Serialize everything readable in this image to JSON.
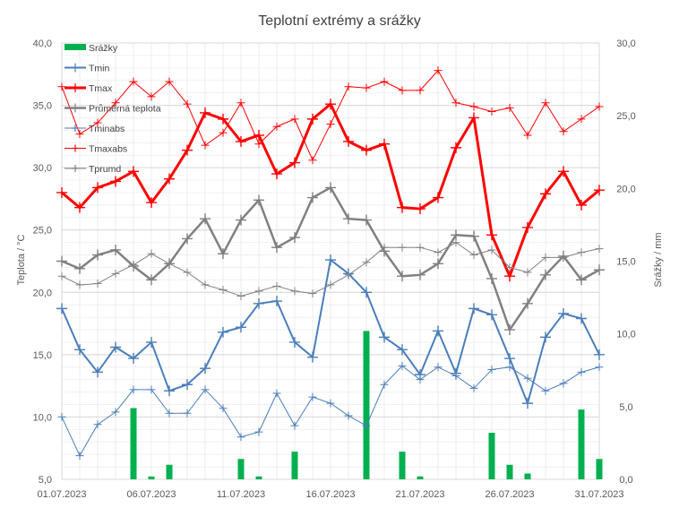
{
  "chart_data": {
    "type": "line",
    "title": "Teplotní extrémy a srážky",
    "ylabel": "Teplota / °C",
    "y2label": "Srážky / mm",
    "ylim": [
      5,
      40
    ],
    "y2lim": [
      0,
      30
    ],
    "y_ticks": [
      "5,0",
      "10,0",
      "15,0",
      "20,0",
      "25,0",
      "30,0",
      "35,0",
      "40,0"
    ],
    "y2_ticks": [
      "0,0",
      "5,0",
      "10,0",
      "15,0",
      "20,0",
      "25,0",
      "30,0"
    ],
    "x_tick_labels": [
      "01.07.2023",
      "06.07.2023",
      "11.07.2023",
      "16.07.2023",
      "21.07.2023",
      "26.07.2023",
      "31.07.2023"
    ],
    "grid": true,
    "legend_position": "top-left",
    "days": 31,
    "series": [
      {
        "name": "Srážky",
        "kind": "bar",
        "axis": "right",
        "color": "#00b050",
        "values": [
          0,
          0,
          0,
          0,
          4.9,
          0.2,
          1.0,
          0,
          0,
          0,
          1.4,
          0.2,
          0,
          1.9,
          0,
          0,
          0,
          10.2,
          0,
          1.9,
          0.2,
          0,
          0,
          0,
          3.2,
          1.0,
          0.4,
          0,
          0,
          4.8,
          1.4
        ]
      },
      {
        "name": "Tmin",
        "kind": "line",
        "axis": "left",
        "color": "#4a7ebb",
        "width": 2,
        "marker": true,
        "values": [
          18.7,
          15.4,
          13.6,
          15.6,
          14.7,
          16.0,
          12.1,
          12.6,
          13.9,
          16.8,
          17.2,
          19.1,
          19.3,
          16.0,
          14.8,
          22.6,
          21.5,
          20.0,
          16.4,
          15.4,
          13.4,
          16.9,
          13.5,
          18.7,
          18.2,
          14.7,
          11.1,
          16.4,
          18.3,
          17.9,
          15.0
        ]
      },
      {
        "name": "Tmax",
        "kind": "line",
        "axis": "left",
        "color": "#ff0000",
        "width": 3,
        "marker": true,
        "values": [
          28.0,
          26.8,
          28.4,
          28.9,
          29.7,
          27.2,
          29.1,
          31.4,
          34.4,
          33.9,
          32.1,
          32.6,
          29.5,
          30.4,
          33.9,
          35.1,
          32.1,
          31.4,
          31.9,
          26.8,
          26.7,
          27.6,
          31.6,
          34.0,
          24.6,
          21.3,
          25.2,
          27.9,
          29.7,
          27.0,
          28.2
        ]
      },
      {
        "name": "Průměrná teplota",
        "kind": "line",
        "axis": "left",
        "color": "#808080",
        "width": 2.5,
        "marker": true,
        "values": [
          22.5,
          21.9,
          23.0,
          23.4,
          22.1,
          21.0,
          22.3,
          24.3,
          25.9,
          23.1,
          25.8,
          27.4,
          23.6,
          24.4,
          27.6,
          28.4,
          25.9,
          25.8,
          23.3,
          21.3,
          21.4,
          22.3,
          24.6,
          24.5,
          21.1,
          17.0,
          19.1,
          21.4,
          22.9,
          21.0,
          21.8
        ]
      },
      {
        "name": "Tminabs",
        "kind": "line",
        "axis": "left",
        "color": "#4a7ebb",
        "width": 1,
        "marker": true,
        "values": [
          10.0,
          6.9,
          9.4,
          10.4,
          12.2,
          12.2,
          10.3,
          10.3,
          12.2,
          10.7,
          8.4,
          8.8,
          11.9,
          9.3,
          11.6,
          11.1,
          10.1,
          9.3,
          12.6,
          14.1,
          13.0,
          14.0,
          13.3,
          12.3,
          13.8,
          14.0,
          13.1,
          12.1,
          12.7,
          13.6,
          14.0
        ]
      },
      {
        "name": "Tmaxabs",
        "kind": "line",
        "axis": "left",
        "color": "#ff0000",
        "width": 1,
        "marker": true,
        "values": [
          36.5,
          32.7,
          33.6,
          35.2,
          36.9,
          35.7,
          36.9,
          35.1,
          31.8,
          32.8,
          35.2,
          31.9,
          33.3,
          33.9,
          30.6,
          33.5,
          36.5,
          36.4,
          36.9,
          36.2,
          36.2,
          37.8,
          35.2,
          34.9,
          34.5,
          34.8,
          32.6,
          35.2,
          32.9,
          33.9,
          34.9
        ]
      },
      {
        "name": "Tprumd",
        "kind": "line",
        "axis": "left",
        "color": "#808080",
        "width": 1,
        "marker": true,
        "values": [
          21.3,
          20.6,
          20.7,
          21.5,
          22.2,
          23.1,
          22.3,
          21.6,
          20.6,
          20.2,
          19.7,
          20.1,
          20.5,
          20.1,
          19.9,
          20.6,
          21.4,
          22.4,
          23.6,
          23.6,
          23.6,
          23.2,
          24.0,
          23.0,
          23.4,
          22.0,
          21.6,
          22.8,
          22.8,
          23.2,
          23.5
        ]
      }
    ]
  }
}
